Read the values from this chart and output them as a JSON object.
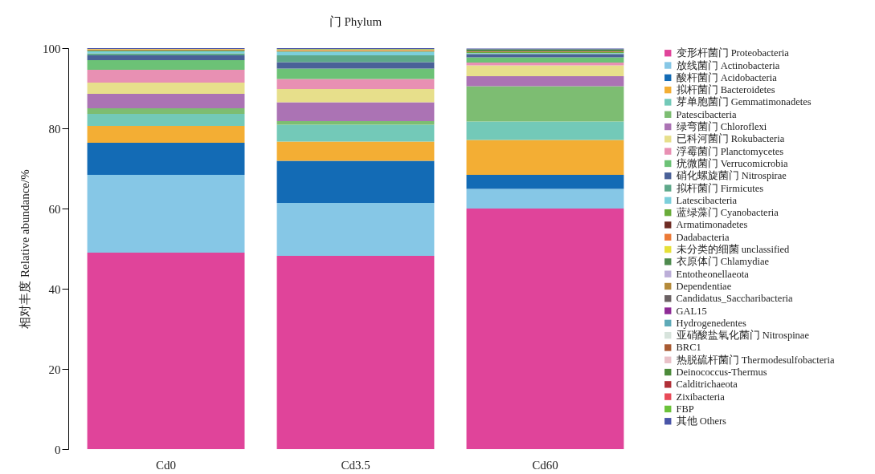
{
  "chart_data": {
    "type": "bar",
    "title": "门 Phylum",
    "ylabel": "相对丰度 Relative abundance/%",
    "categories": [
      "Cd0",
      "Cd3.5",
      "Cd60"
    ],
    "stacked": true,
    "ylim": [
      0,
      100
    ],
    "yticks": [
      0,
      20,
      40,
      60,
      80,
      100
    ],
    "grid": false,
    "legend": "right",
    "series": [
      {
        "name": "变形杆菌门 Proteobacteria",
        "color": "#e0449a",
        "values": [
          49,
          48.2,
          60
        ]
      },
      {
        "name": "放线菌门 Actinobacteria",
        "color": "#86c7e6",
        "values": [
          19.4,
          13.2,
          4.9
        ]
      },
      {
        "name": "酸杆菌门 Acidobacteria",
        "color": "#136bb5",
        "values": [
          8,
          10.5,
          3.5
        ]
      },
      {
        "name": "拟杆菌门 Bacteroidetes",
        "color": "#f3ae34",
        "values": [
          4.2,
          4.8,
          8.7
        ]
      },
      {
        "name": "芽单胞菌门 Gemmatimonadetes",
        "color": "#73c9b8",
        "values": [
          3,
          4.2,
          4.6
        ]
      },
      {
        "name": "Patescibacteria",
        "color": "#7dbd72",
        "values": [
          1.4,
          0.9,
          8.8
        ]
      },
      {
        "name": "绿弯菌门 Chloroflexi",
        "color": "#ab73b4",
        "values": [
          3.6,
          4.7,
          2.5
        ]
      },
      {
        "name": "已科河菌门 Rokubacteria",
        "color": "#e7df8b",
        "values": [
          2.8,
          3.3,
          2.7
        ]
      },
      {
        "name": "浮霉菌门 Planctomycetes",
        "color": "#e890b3",
        "values": [
          3.2,
          2.5,
          0.7
        ]
      },
      {
        "name": "疣微菌门 Verrucomicrobia",
        "color": "#6cc276",
        "values": [
          2.4,
          2.6,
          1.3
        ]
      },
      {
        "name": "硝化螺旋菌门 Nitrospirae",
        "color": "#4a6198",
        "values": [
          1.2,
          1.6,
          0.8
        ]
      },
      {
        "name": "拟杆菌门 Firmicutes",
        "color": "#5ea88a",
        "values": [
          0.5,
          1.7,
          0.2
        ]
      },
      {
        "name": "Latescibacteria",
        "color": "#7ccfdb",
        "values": [
          0.5,
          0.9,
          0.1
        ]
      },
      {
        "name": "蓝绿藻门 Cyanobacteria",
        "color": "#6aac3a",
        "values": [
          0.2,
          0.1,
          0.2
        ]
      },
      {
        "name": "Armatimonadetes",
        "color": "#6e2c24",
        "values": [
          0.1,
          0.1,
          0.1
        ]
      },
      {
        "name": "Dadabacteria",
        "color": "#ec7a36",
        "values": [
          0.2,
          0.2,
          0.1
        ]
      },
      {
        "name": "未分类的细菌 unclassified",
        "color": "#e6e038",
        "values": [
          0.1,
          0.2,
          0
        ]
      },
      {
        "name": "衣原体门 Chlamydiae",
        "color": "#4e8a4e",
        "values": [
          0,
          0.1,
          0.2
        ]
      },
      {
        "name": "Entotheonellaeota",
        "color": "#bcaed8",
        "values": [
          0,
          0,
          0
        ]
      },
      {
        "name": "Dependentiae",
        "color": "#b48a3a",
        "values": [
          0,
          0,
          0
        ]
      },
      {
        "name": "Candidatus_Saccharibacteria",
        "color": "#6b6163",
        "values": [
          0,
          0,
          0
        ]
      },
      {
        "name": "GAL15",
        "color": "#8e2b95",
        "values": [
          0,
          0,
          0
        ]
      },
      {
        "name": "Hydrogenedentes",
        "color": "#5eaab8",
        "values": [
          0,
          0,
          0
        ]
      },
      {
        "name": "亚硝酸盐氧化菌门 Nitrospinae",
        "color": "#d7e3dc",
        "values": [
          0,
          0,
          0
        ]
      },
      {
        "name": "BRC1",
        "color": "#a85a32",
        "values": [
          0,
          0,
          0
        ]
      },
      {
        "name": "热脱硫杆菌门 Thermodesulfobacteria",
        "color": "#e9c1c8",
        "values": [
          0,
          0,
          0
        ]
      },
      {
        "name": "Deinococcus-Thermus",
        "color": "#4c8a3a",
        "values": [
          0,
          0,
          0.3
        ]
      },
      {
        "name": "Calditrichaeota",
        "color": "#b03038",
        "values": [
          0,
          0,
          0
        ]
      },
      {
        "name": "Zixibacteria",
        "color": "#e84a58",
        "values": [
          0,
          0,
          0
        ]
      },
      {
        "name": "FBP",
        "color": "#6bc23a",
        "values": [
          0,
          0,
          0
        ]
      },
      {
        "name": "其他 Others",
        "color": "#4a55a8",
        "values": [
          0.2,
          0.2,
          0.2
        ]
      }
    ]
  }
}
